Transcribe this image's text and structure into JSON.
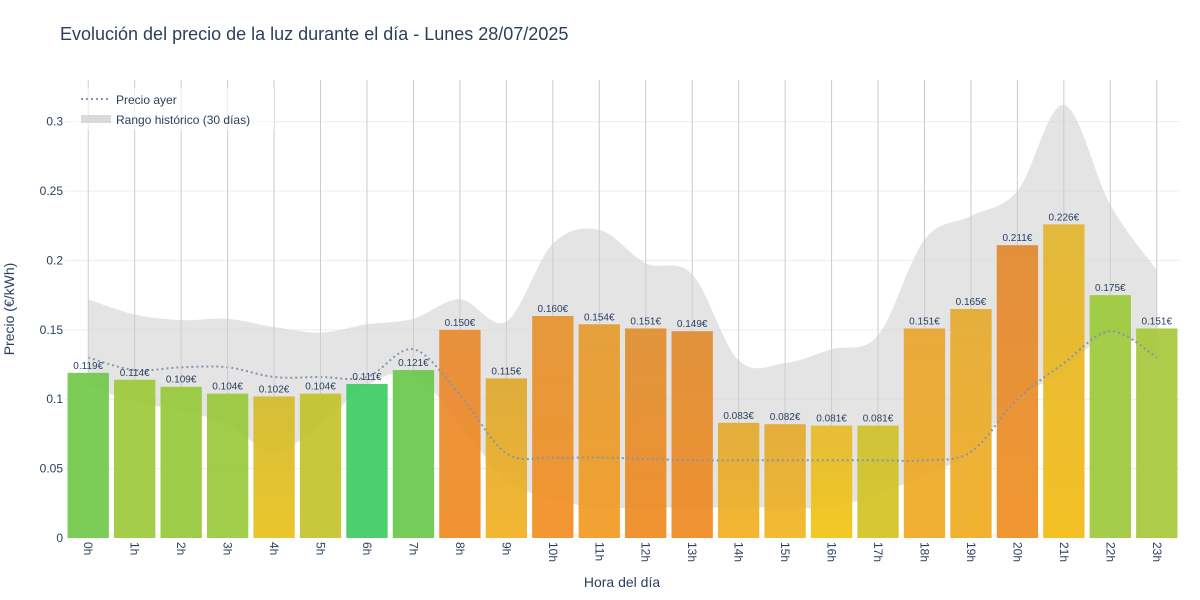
{
  "title": "Evolución del precio de la luz durante el día - Lunes 28/07/2025",
  "chart_data": {
    "type": "bar",
    "title": "Evolución del precio de la luz durante el día - Lunes 28/07/2025",
    "xlabel": "Hora del día",
    "ylabel": "Precio (€/kWh)",
    "ylim": [
      0,
      0.33
    ],
    "yticks": [
      0,
      0.05,
      0.1,
      0.15,
      0.2,
      0.25,
      0.3
    ],
    "ytick_labels": [
      "0",
      "0.05",
      "0.1",
      "0.15",
      "0.2",
      "0.25",
      "0.3"
    ],
    "categories": [
      "0h",
      "1h",
      "2h",
      "3h",
      "4h",
      "5h",
      "6h",
      "7h",
      "8h",
      "9h",
      "10h",
      "11h",
      "12h",
      "13h",
      "14h",
      "15h",
      "16h",
      "17h",
      "18h",
      "19h",
      "20h",
      "21h",
      "22h",
      "23h"
    ],
    "values": [
      0.119,
      0.114,
      0.109,
      0.104,
      0.102,
      0.104,
      0.111,
      0.121,
      0.15,
      0.115,
      0.16,
      0.154,
      0.151,
      0.149,
      0.083,
      0.082,
      0.081,
      0.081,
      0.151,
      0.165,
      0.211,
      0.226,
      0.175,
      0.151
    ],
    "value_labels": [
      "0.119€",
      "0.114€",
      "0.109€",
      "0.104€",
      "0.102€",
      "0.104€",
      "0.111€",
      "0.121€",
      "0.150€",
      "0.115€",
      "0.160€",
      "0.154€",
      "0.151€",
      "0.149€",
      "0.083€",
      "0.082€",
      "0.081€",
      "0.081€",
      "0.151€",
      "0.165€",
      "0.211€",
      "0.226€",
      "0.175€",
      "0.151€"
    ],
    "bar_colors": [
      "#70c94a",
      "#9cc93a",
      "#96c93a",
      "#98c93a",
      "#d4bb2a",
      "#c4c22a",
      "#3dcc63",
      "#6ac84a",
      "#e9892e",
      "#dea82e",
      "#e5922e",
      "#e59a2e",
      "#e08e2e",
      "#e08b2e",
      "#e3a92e",
      "#e3a82e",
      "#e6ba2a",
      "#cfc02a",
      "#e8a62e",
      "#e6aa2e",
      "#e2882e",
      "#e2b52e",
      "#9dc93a",
      "#a6c93a"
    ],
    "bar_fade_colors": [
      "#70c94a",
      "#9cc93a",
      "#96c93a",
      "#98c93a",
      "#e8c01a",
      "#c4c22a",
      "#3dcc63",
      "#6ac84a",
      "#f08a20",
      "#f2b020",
      "#f28e20",
      "#f29a20",
      "#f08a20",
      "#f08a20",
      "#f2b020",
      "#f2b420",
      "#f2c410",
      "#d4c420",
      "#f0aa20",
      "#f0ac20",
      "#f08e20",
      "#f2ba10",
      "#9dc93a",
      "#a6c93a"
    ],
    "series": [
      {
        "name": "Precio ayer",
        "style": "dotted",
        "color": "#8496b0",
        "values": [
          0.13,
          0.121,
          0.123,
          0.123,
          0.116,
          0.116,
          0.116,
          0.136,
          0.103,
          0.061,
          0.058,
          0.058,
          0.057,
          0.056,
          0.056,
          0.056,
          0.056,
          0.056,
          0.056,
          0.062,
          0.1,
          0.126,
          0.149,
          0.13
        ]
      },
      {
        "name": "Rango histórico (30 días)",
        "style": "band",
        "color": "#d9d9d9",
        "upper": [
          0.172,
          0.161,
          0.157,
          0.158,
          0.152,
          0.148,
          0.154,
          0.158,
          0.172,
          0.156,
          0.212,
          0.222,
          0.198,
          0.19,
          0.128,
          0.126,
          0.136,
          0.146,
          0.215,
          0.232,
          0.25,
          0.312,
          0.24,
          0.193
        ],
        "lower": [
          0.11,
          0.098,
          0.092,
          0.082,
          0.062,
          0.082,
          0.11,
          0.118,
          0.082,
          0.042,
          0.028,
          0.022,
          0.022,
          0.022,
          0.022,
          0.022,
          0.022,
          0.032,
          0.045,
          0.062,
          0.1,
          0.12,
          0.148,
          0.13
        ]
      }
    ],
    "legend": [
      "Precio ayer",
      "Rango histórico (30 días)"
    ],
    "legend_position": "top-left",
    "grid": true
  }
}
